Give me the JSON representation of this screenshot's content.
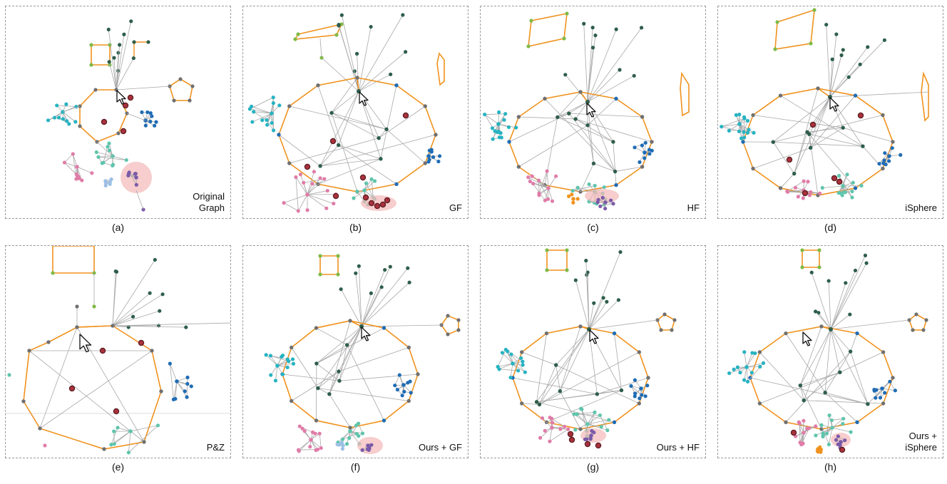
{
  "figure": {
    "panels": [
      {
        "id": "a",
        "label": "Original\nGraph",
        "caption": "(a)"
      },
      {
        "id": "b",
        "label": "GF",
        "caption": "(b)"
      },
      {
        "id": "c",
        "label": "HF",
        "caption": "(c)"
      },
      {
        "id": "d",
        "label": "iSphere",
        "caption": "(d)"
      },
      {
        "id": "e",
        "label": "P&Z",
        "caption": "(e)"
      },
      {
        "id": "f",
        "label": "Ours + GF",
        "caption": "(f)"
      },
      {
        "id": "g",
        "label": "Ours + HF",
        "caption": "(g)"
      },
      {
        "id": "h",
        "label": "Ours +\niSphere",
        "caption": "(h)"
      }
    ]
  },
  "colors": {
    "edge": "#a8a8a8",
    "highlight_edge": "#f0921e",
    "focus_node": "#a8323c",
    "focus_halo": "#f4b8b8",
    "cyan": "#27b3c2",
    "gray": "#707070",
    "dark_green": "#2e5e4a",
    "light_green": "#7fba46",
    "blue": "#1f6cb5",
    "pink": "#e07ca8",
    "teal": "#5fc5ad",
    "light_blue": "#9cc0e4",
    "purple": "#7a5aa8",
    "orange_node": "#f0921e"
  },
  "icons": {
    "cursor": "cursor-arrow-icon"
  }
}
